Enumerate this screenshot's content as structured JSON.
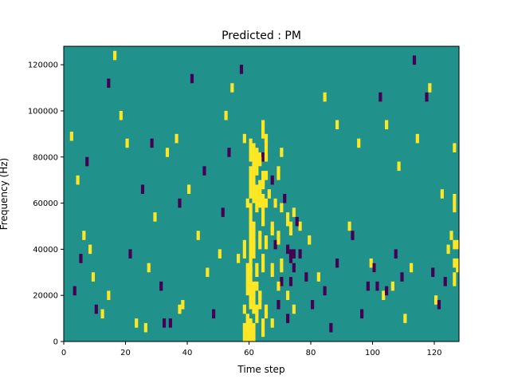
{
  "chart_data": {
    "type": "heatmap",
    "title": "Predicted : PM",
    "xlabel": "Time step",
    "ylabel": "Frequency (Hz)",
    "xlim": [
      0,
      128
    ],
    "ylim": [
      0,
      128000
    ],
    "xticks": [
      0,
      20,
      40,
      60,
      80,
      100,
      120
    ],
    "yticks": [
      0,
      20000,
      40000,
      60000,
      80000,
      100000,
      120000
    ],
    "grid": false,
    "legend": "none",
    "colors": {
      "background": "#21918c",
      "high": "#fde725",
      "low": "#440154"
    },
    "background_value": 0,
    "value_levels": [
      -1,
      0,
      1
    ],
    "sparse_cells": [
      [
        2,
        87000,
        1
      ],
      [
        4,
        68000,
        1
      ],
      [
        6,
        44000,
        1
      ],
      [
        8,
        38000,
        1
      ],
      [
        9,
        26000,
        1
      ],
      [
        12,
        10000,
        1
      ],
      [
        14,
        18000,
        1
      ],
      [
        16,
        122000,
        1
      ],
      [
        18,
        96000,
        1
      ],
      [
        20,
        84000,
        1
      ],
      [
        23,
        6000,
        1
      ],
      [
        26,
        4000,
        1
      ],
      [
        27,
        30000,
        1
      ],
      [
        29,
        52000,
        1
      ],
      [
        33,
        80000,
        1
      ],
      [
        36,
        86000,
        1
      ],
      [
        37,
        12000,
        1
      ],
      [
        38,
        14000,
        1
      ],
      [
        40,
        64000,
        1
      ],
      [
        43,
        44000,
        1
      ],
      [
        46,
        28000,
        1
      ],
      [
        50,
        36000,
        1
      ],
      [
        52,
        96000,
        1
      ],
      [
        54,
        108000,
        1
      ],
      [
        56,
        34000,
        1
      ],
      [
        58,
        12000,
        1
      ],
      [
        59,
        8000,
        1
      ],
      [
        59,
        4000,
        1
      ],
      [
        60,
        28000,
        1
      ],
      [
        61,
        40000,
        1
      ],
      [
        62,
        22000,
        1
      ],
      [
        63,
        18000,
        1
      ],
      [
        63,
        78000,
        1
      ],
      [
        64,
        66000,
        1
      ],
      [
        65,
        70000,
        1
      ],
      [
        66,
        62000,
        1
      ],
      [
        67,
        48000,
        1
      ],
      [
        68,
        58000,
        1
      ],
      [
        72,
        18000,
        1
      ],
      [
        74,
        54000,
        1
      ],
      [
        76,
        48000,
        1
      ],
      [
        79,
        42000,
        1
      ],
      [
        82,
        26000,
        1
      ],
      [
        84,
        104000,
        1
      ],
      [
        88,
        92000,
        1
      ],
      [
        92,
        48000,
        1
      ],
      [
        95,
        84000,
        1
      ],
      [
        99,
        32000,
        1
      ],
      [
        100,
        30000,
        1
      ],
      [
        103,
        18000,
        1
      ],
      [
        104,
        92000,
        1
      ],
      [
        106,
        22000,
        1
      ],
      [
        108,
        74000,
        1
      ],
      [
        110,
        8000,
        1
      ],
      [
        112,
        30000,
        1
      ],
      [
        114,
        86000,
        1
      ],
      [
        118,
        108000,
        1
      ],
      [
        120,
        16000,
        1
      ],
      [
        122,
        62000,
        1
      ],
      [
        124,
        38000,
        1
      ],
      [
        125,
        44000,
        1
      ],
      [
        126,
        32000,
        1
      ],
      [
        126,
        82000,
        1
      ],
      [
        3,
        20000,
        -1
      ],
      [
        5,
        34000,
        -1
      ],
      [
        7,
        76000,
        -1
      ],
      [
        10,
        12000,
        -1
      ],
      [
        14,
        110000,
        -1
      ],
      [
        21,
        36000,
        -1
      ],
      [
        25,
        64000,
        -1
      ],
      [
        28,
        84000,
        -1
      ],
      [
        31,
        22000,
        -1
      ],
      [
        32,
        6000,
        -1
      ],
      [
        34,
        6000,
        -1
      ],
      [
        37,
        58000,
        -1
      ],
      [
        41,
        112000,
        -1
      ],
      [
        45,
        72000,
        -1
      ],
      [
        48,
        10000,
        -1
      ],
      [
        51,
        54000,
        -1
      ],
      [
        53,
        80000,
        -1
      ],
      [
        57,
        116000,
        -1
      ],
      [
        61,
        70000,
        -1
      ],
      [
        64,
        78000,
        -1
      ],
      [
        65,
        82000,
        -1
      ],
      [
        67,
        68000,
        -1
      ],
      [
        68,
        40000,
        -1
      ],
      [
        69,
        14000,
        -1
      ],
      [
        70,
        24000,
        -1
      ],
      [
        71,
        60000,
        -1
      ],
      [
        72,
        8000,
        -1
      ],
      [
        73,
        24000,
        -1
      ],
      [
        74,
        36000,
        -1
      ],
      [
        75,
        50000,
        -1
      ],
      [
        76,
        36000,
        -1
      ],
      [
        78,
        26000,
        -1
      ],
      [
        80,
        14000,
        -1
      ],
      [
        84,
        20000,
        -1
      ],
      [
        86,
        4000,
        -1
      ],
      [
        88,
        32000,
        -1
      ],
      [
        93,
        44000,
        -1
      ],
      [
        96,
        10000,
        -1
      ],
      [
        98,
        22000,
        -1
      ],
      [
        100,
        30000,
        -1
      ],
      [
        101,
        22000,
        -1
      ],
      [
        102,
        104000,
        -1
      ],
      [
        104,
        20000,
        -1
      ],
      [
        107,
        36000,
        -1
      ],
      [
        109,
        26000,
        -1
      ],
      [
        113,
        120000,
        -1
      ],
      [
        117,
        104000,
        -1
      ],
      [
        119,
        28000,
        -1
      ],
      [
        121,
        14000,
        -1
      ],
      [
        123,
        24000,
        -1
      ]
    ],
    "column_runs": [
      {
        "x": 58,
        "runs": [
          [
            0,
            8000,
            1
          ],
          [
            36000,
            44000,
            1
          ],
          [
            86000,
            90000,
            1
          ]
        ]
      },
      {
        "x": 59,
        "runs": [
          [
            0,
            12000,
            1
          ],
          [
            20000,
            34000,
            1
          ],
          [
            58000,
            62000,
            1
          ]
        ]
      },
      {
        "x": 60,
        "runs": [
          [
            0,
            10000,
            1
          ],
          [
            14000,
            28000,
            1
          ],
          [
            30000,
            60000,
            1
          ],
          [
            62000,
            76000,
            1
          ],
          [
            78000,
            88000,
            1
          ]
        ]
      },
      {
        "x": 61,
        "runs": [
          [
            0,
            8000,
            1
          ],
          [
            12000,
            26000,
            1
          ],
          [
            36000,
            52000,
            1
          ],
          [
            60000,
            86000,
            1
          ]
        ]
      },
      {
        "x": 62,
        "runs": [
          [
            8000,
            16000,
            1
          ],
          [
            28000,
            34000,
            1
          ],
          [
            56000,
            68000,
            1
          ],
          [
            72000,
            84000,
            1
          ]
        ]
      },
      {
        "x": 63,
        "runs": [
          [
            14000,
            22000,
            1
          ],
          [
            40000,
            48000,
            1
          ],
          [
            58000,
            70000,
            1
          ],
          [
            76000,
            80000,
            1
          ]
        ]
      },
      {
        "x": 64,
        "runs": [
          [
            2000,
            10000,
            1
          ],
          [
            30000,
            38000,
            1
          ],
          [
            50000,
            64000,
            1
          ],
          [
            68000,
            74000,
            1
          ],
          [
            88000,
            96000,
            1
          ]
        ]
      },
      {
        "x": 65,
        "runs": [
          [
            10000,
            16000,
            1
          ],
          [
            40000,
            46000,
            1
          ],
          [
            58000,
            62000,
            1
          ],
          [
            78000,
            90000,
            1
          ]
        ]
      },
      {
        "x": 67,
        "runs": [
          [
            6000,
            10000,
            1
          ],
          [
            28000,
            34000,
            1
          ],
          [
            46000,
            50000,
            1
          ]
        ]
      },
      {
        "x": 69,
        "runs": [
          [
            22000,
            26000,
            1
          ],
          [
            42000,
            48000,
            1
          ],
          [
            70000,
            76000,
            1
          ]
        ]
      },
      {
        "x": 70,
        "runs": [
          [
            30000,
            36000,
            1
          ],
          [
            56000,
            60000,
            1
          ],
          [
            80000,
            84000,
            1
          ]
        ]
      },
      {
        "x": 72,
        "runs": [
          [
            38000,
            42000,
            -1
          ],
          [
            50000,
            56000,
            1
          ]
        ]
      },
      {
        "x": 73,
        "runs": [
          [
            34000,
            40000,
            -1
          ],
          [
            46000,
            52000,
            1
          ]
        ]
      },
      {
        "x": 74,
        "runs": [
          [
            30000,
            34000,
            -1
          ],
          [
            12000,
            16000,
            1
          ]
        ]
      },
      {
        "x": 126,
        "runs": [
          [
            40000,
            44000,
            1
          ],
          [
            24000,
            30000,
            1
          ],
          [
            56000,
            64000,
            1
          ]
        ]
      },
      {
        "x": 127,
        "runs": [
          [
            40000,
            44000,
            1
          ],
          [
            30000,
            36000,
            1
          ]
        ]
      }
    ]
  }
}
